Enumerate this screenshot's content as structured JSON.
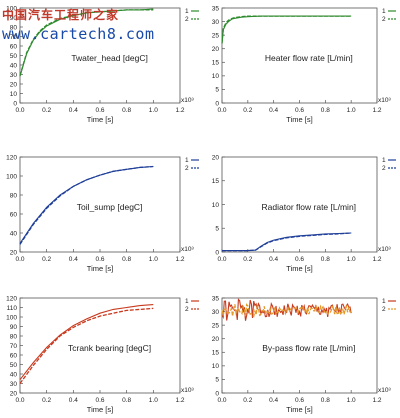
{
  "watermark": {
    "title": "中国汽车工程师之家",
    "url": "www.cartech8.com"
  },
  "chart_data": [
    {
      "type": "line",
      "title": "Twater_head [degC]",
      "xlabel": "Time [s]",
      "x_multiplier": "x10³",
      "xlim": [
        0,
        1.2
      ],
      "ylim": [
        0,
        100
      ],
      "xticks": [
        "0.0",
        "0.2",
        "0.4",
        "0.6",
        "0.8",
        "1.0",
        "1.2"
      ],
      "yticks": [
        "0",
        "10",
        "20",
        "30",
        "40",
        "50",
        "60",
        "70",
        "80",
        "90",
        "100"
      ],
      "legend_labels": [
        "1",
        "2"
      ],
      "colors": [
        "#2d8a2d",
        "#2d8a2d"
      ],
      "series": [
        {
          "name": "1",
          "x": [
            0,
            0.05,
            0.1,
            0.15,
            0.2,
            0.3,
            0.4,
            0.5,
            0.6,
            0.7,
            0.8,
            0.9,
            1.0
          ],
          "y": [
            28,
            52,
            66,
            75,
            81,
            88,
            92,
            95,
            96,
            97,
            98,
            98,
            99
          ]
        },
        {
          "name": "2",
          "x": [
            0,
            0.05,
            0.1,
            0.15,
            0.2,
            0.3,
            0.4,
            0.5,
            0.6,
            0.7,
            0.8,
            0.9,
            1.0
          ],
          "y": [
            29,
            53,
            67,
            76,
            82,
            89,
            92,
            95,
            96,
            97,
            98,
            98,
            98
          ]
        }
      ]
    },
    {
      "type": "line",
      "title": "Heater flow rate [L/min]",
      "xlabel": "Time [s]",
      "x_multiplier": "x10³",
      "xlim": [
        0,
        1.2
      ],
      "ylim": [
        0,
        35
      ],
      "xticks": [
        "0.0",
        "0.2",
        "0.4",
        "0.6",
        "0.8",
        "1.0",
        "1.2"
      ],
      "yticks": [
        "0",
        "5",
        "10",
        "15",
        "20",
        "25",
        "30",
        "35"
      ],
      "legend_labels": [
        "1",
        "2"
      ],
      "colors": [
        "#2d8a2d",
        "#2d8a2d"
      ],
      "series": [
        {
          "name": "1",
          "x": [
            0,
            0.01,
            0.03,
            0.05,
            0.08,
            0.1,
            0.15,
            0.2,
            0.3,
            0.4,
            0.5,
            0.6,
            0.7,
            0.8,
            0.9,
            1.0
          ],
          "y": [
            22,
            27,
            29,
            30,
            31,
            31.2,
            31.6,
            31.8,
            32,
            32,
            32,
            32,
            32,
            32,
            32,
            32
          ]
        },
        {
          "name": "2",
          "x": [
            0,
            0.01,
            0.03,
            0.05,
            0.08,
            0.1,
            0.15,
            0.2,
            0.3,
            0.4,
            0.5,
            0.6,
            0.7,
            0.8,
            0.9,
            1.0
          ],
          "y": [
            22,
            27.5,
            29.5,
            30.5,
            31.2,
            31.5,
            31.8,
            32,
            32,
            32,
            32,
            32,
            32,
            32,
            32,
            32
          ]
        }
      ]
    },
    {
      "type": "line",
      "title": "Toil_sump [degC]",
      "xlabel": "Time [s]",
      "x_multiplier": "x10³",
      "xlim": [
        0,
        1.2
      ],
      "ylim": [
        20,
        120
      ],
      "xticks": [
        "0.0",
        "0.2",
        "0.4",
        "0.6",
        "0.8",
        "1.0",
        "1.2"
      ],
      "yticks": [
        "20",
        "40",
        "60",
        "80",
        "100",
        "120"
      ],
      "legend_labels": [
        "1",
        "2"
      ],
      "colors": [
        "#1f3f99",
        "#1f3f99"
      ],
      "series": [
        {
          "name": "1",
          "x": [
            0,
            0.1,
            0.2,
            0.3,
            0.4,
            0.5,
            0.6,
            0.7,
            0.8,
            0.9,
            1.0
          ],
          "y": [
            29,
            50,
            67,
            80,
            89,
            96,
            101,
            105,
            107,
            109,
            110
          ]
        },
        {
          "name": "2",
          "x": [
            0,
            0.1,
            0.2,
            0.3,
            0.4,
            0.5,
            0.6,
            0.7,
            0.8,
            0.9,
            1.0
          ],
          "y": [
            28,
            49,
            66,
            79,
            89,
            96,
            101,
            105,
            107,
            109,
            110
          ]
        }
      ]
    },
    {
      "type": "line",
      "title": "Radiator flow rate [L/min]",
      "xlabel": "Time [s]",
      "x_multiplier": "x10³",
      "xlim": [
        0,
        1.2
      ],
      "ylim": [
        0,
        20
      ],
      "xticks": [
        "0.0",
        "0.2",
        "0.4",
        "0.6",
        "0.8",
        "1.0",
        "1.2"
      ],
      "yticks": [
        "0",
        "5",
        "10",
        "15",
        "20"
      ],
      "legend_labels": [
        "1",
        "2"
      ],
      "colors": [
        "#1f3f99",
        "#1f3f99"
      ],
      "series": [
        {
          "name": "1",
          "x": [
            0,
            0.1,
            0.2,
            0.26,
            0.3,
            0.35,
            0.4,
            0.5,
            0.6,
            0.7,
            0.8,
            0.9,
            1.0
          ],
          "y": [
            0.3,
            0.3,
            0.3,
            0.4,
            1.2,
            2.0,
            2.5,
            3.1,
            3.4,
            3.6,
            3.8,
            3.9,
            4.0
          ]
        },
        {
          "name": "2",
          "x": [
            0,
            0.1,
            0.2,
            0.26,
            0.3,
            0.35,
            0.4,
            0.5,
            0.6,
            0.7,
            0.8,
            0.9,
            1.0
          ],
          "y": [
            0.3,
            0.3,
            0.3,
            0.4,
            1.1,
            1.9,
            2.4,
            3.0,
            3.3,
            3.5,
            3.7,
            3.8,
            4.0
          ]
        }
      ]
    },
    {
      "type": "line",
      "title": "Tcrank bearing [degC]",
      "xlabel": "Time [s]",
      "x_multiplier": "x10³",
      "xlim": [
        0,
        1.2
      ],
      "ylim": [
        20,
        120
      ],
      "xticks": [
        "0.0",
        "0.2",
        "0.4",
        "0.6",
        "0.8",
        "1.0",
        "1.2"
      ],
      "yticks": [
        "20",
        "30",
        "40",
        "50",
        "60",
        "70",
        "80",
        "90",
        "100",
        "110",
        "120"
      ],
      "legend_labels": [
        "1",
        "2"
      ],
      "colors": [
        "#c83a1e",
        "#c83a1e"
      ],
      "series": [
        {
          "name": "1",
          "x": [
            0,
            0.1,
            0.2,
            0.3,
            0.4,
            0.5,
            0.6,
            0.7,
            0.8,
            0.9,
            1.0
          ],
          "y": [
            34,
            52,
            68,
            81,
            91,
            98,
            104,
            108,
            110,
            112,
            113
          ]
        },
        {
          "name": "2",
          "x": [
            0,
            0.1,
            0.2,
            0.3,
            0.4,
            0.5,
            0.6,
            0.7,
            0.8,
            0.9,
            1.0
          ],
          "y": [
            30,
            49,
            66,
            80,
            89,
            96,
            101,
            104,
            107,
            108,
            109
          ]
        }
      ]
    },
    {
      "type": "line",
      "title": "By-pass flow rate [L/min]",
      "xlabel": "Time [s]",
      "x_multiplier": "x10³",
      "xlim": [
        0,
        1.2
      ],
      "ylim": [
        0,
        35
      ],
      "xticks": [
        "0.0",
        "0.2",
        "0.4",
        "0.6",
        "0.8",
        "1.0",
        "1.2"
      ],
      "yticks": [
        "0",
        "5",
        "10",
        "15",
        "20",
        "25",
        "30",
        "35"
      ],
      "legend_labels": [
        "1",
        "2"
      ],
      "colors": [
        "#c83a1e",
        "#e39a2a"
      ],
      "series": [
        {
          "name": "1",
          "x": [
            0,
            0.2,
            0.4,
            0.6,
            0.8,
            1.0
          ],
          "y": [
            30.5,
            30.5,
            30.5,
            30.5,
            30.5,
            30.5
          ],
          "noise": 2.5
        },
        {
          "name": "2",
          "x": [
            0,
            0.2,
            0.4,
            0.6,
            0.8,
            1.0
          ],
          "y": [
            30.5,
            30.5,
            30.5,
            30.5,
            30.5,
            30.5
          ],
          "noise": 1.5
        }
      ]
    }
  ]
}
